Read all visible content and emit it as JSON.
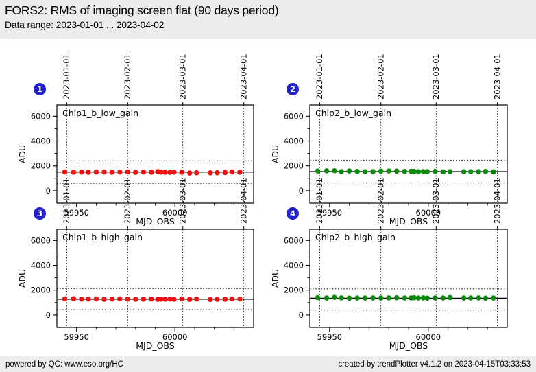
{
  "header": {
    "title": "FORS2: RMS of imaging screen flat (90 days period)",
    "subtitle": "Data range: 2023-01-01 ... 2023-04-02"
  },
  "footer": {
    "left": "powered by QC: www.eso.org/HC",
    "right": "created by trendPlotter v4.1.2 on 2023-04-15T03:33:53"
  },
  "colors": {
    "header_bg": "#ececec",
    "footer_bg": "#ececec",
    "badge_blue": "#2222cc",
    "red_series": "#ee1111",
    "green_series": "#0a8a0a",
    "grid_line": "#000000"
  },
  "chart_data": {
    "type": "scatter",
    "title": "",
    "xlabel": "MJD_OBS",
    "ylabel": "ADU",
    "xlim": [
      59940,
      60040
    ],
    "ylim": [
      -1000,
      6900
    ],
    "xticks": [
      59950,
      60000
    ],
    "x_minor_step": 10,
    "yticks": [
      0,
      2000,
      4000,
      6000
    ],
    "y_minor_ticks": [
      1000,
      3000,
      5000
    ],
    "grid": "dotted vertical lines at month boundaries; dotted horizontal threshold lines; solid horizontal median line",
    "legend_position": "none",
    "date_ticks": [
      {
        "mjd": 59945,
        "label": "2023-01-01"
      },
      {
        "mjd": 59976,
        "label": "2023-02-01"
      },
      {
        "mjd": 60004,
        "label": "2023-03-01"
      },
      {
        "mjd": 60035,
        "label": "2023-04-01"
      }
    ],
    "x": [
      59944,
      59948.5,
      59952.5,
      59956,
      59960,
      59964,
      59968,
      59972,
      59976,
      59980,
      59984,
      59988,
      59991.3,
      59992.8,
      59995,
      59997.5,
      59999.5,
      60003.5,
      60007.5,
      60011,
      60018,
      60021.5,
      60025.5,
      60029,
      60033
    ],
    "panels": [
      {
        "number": "1",
        "label": "Chip1_b_low_gain",
        "color": "#ee1111",
        "values": [
          1510,
          1490,
          1500,
          1480,
          1510,
          1500,
          1490,
          1500,
          1510,
          1480,
          1500,
          1490,
          1540,
          1500,
          1490,
          1480,
          1500,
          1490,
          1430,
          1450,
          1440,
          1450,
          1470,
          1510,
          1490
        ],
        "median_line": 1500,
        "thresholds": [
          590,
          2410
        ]
      },
      {
        "number": "2",
        "label": "Chip2_b_low_gain",
        "color": "#0a8a0a",
        "values": [
          1590,
          1600,
          1610,
          1540,
          1590,
          1550,
          1530,
          1540,
          1570,
          1590,
          1580,
          1550,
          1570,
          1560,
          1530,
          1540,
          1540,
          1560,
          1520,
          1540,
          1530,
          1530,
          1540,
          1550,
          1520
        ],
        "median_line": 1540,
        "thresholds": [
          620,
          2460
        ]
      },
      {
        "number": "3",
        "label": "Chip1_b_high_gain",
        "color": "#ee1111",
        "values": [
          1300,
          1310,
          1280,
          1290,
          1300,
          1270,
          1290,
          1300,
          1280,
          1270,
          1280,
          1290,
          1260,
          1280,
          1270,
          1290,
          1270,
          1300,
          1260,
          1290,
          1250,
          1260,
          1270,
          1300,
          1290
        ],
        "median_line": 1270,
        "thresholds": [
          430,
          2130
        ]
      },
      {
        "number": "4",
        "label": "Chip2_b_high_gain",
        "color": "#0a8a0a",
        "values": [
          1400,
          1370,
          1420,
          1380,
          1360,
          1370,
          1370,
          1380,
          1370,
          1380,
          1390,
          1370,
          1380,
          1390,
          1370,
          1380,
          1360,
          1370,
          1370,
          1410,
          1370,
          1370,
          1380,
          1360,
          1370
        ],
        "median_line": 1350,
        "thresholds": [
          400,
          2100
        ]
      }
    ]
  }
}
